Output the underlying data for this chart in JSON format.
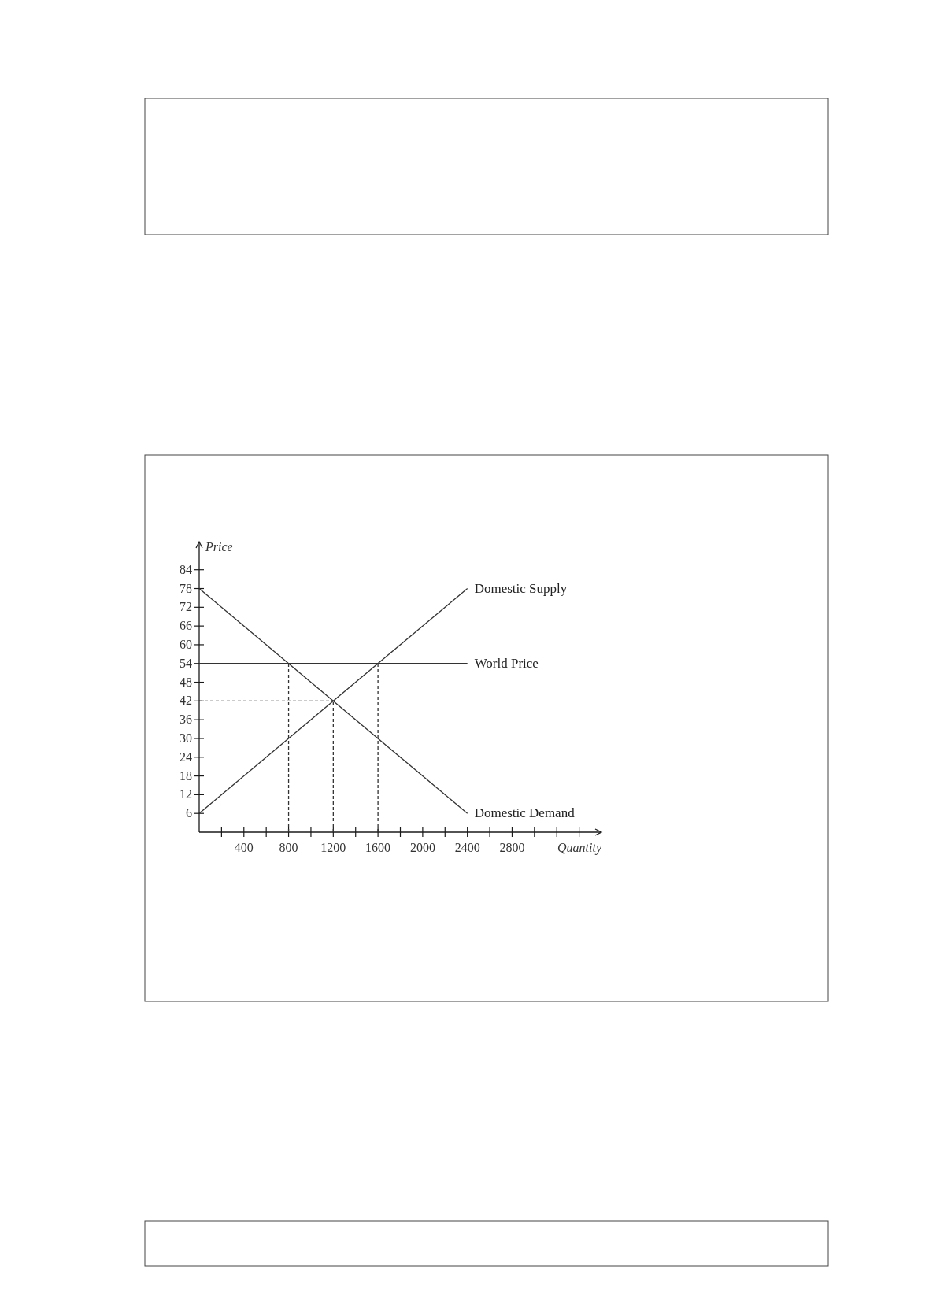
{
  "chart_data": {
    "type": "line",
    "xlabel": "Quantity",
    "ylabel": "Price",
    "xlim": [
      0,
      3600
    ],
    "ylim": [
      0,
      93
    ],
    "xticks": [
      {
        "value": 200,
        "label": null
      },
      400,
      {
        "value": 600,
        "label": null
      },
      800,
      {
        "value": 1000,
        "label": null
      },
      1200,
      {
        "value": 1400,
        "label": null
      },
      1600,
      {
        "value": 1800,
        "label": null
      },
      2000,
      {
        "value": 2200,
        "label": null
      },
      2400,
      {
        "value": 2600,
        "label": null
      },
      2800,
      {
        "value": 3000,
        "label": null
      },
      {
        "value": 3200,
        "label": null
      },
      {
        "value": 3400,
        "label": null
      }
    ],
    "yticks": [
      6,
      12,
      18,
      24,
      30,
      36,
      42,
      48,
      54,
      60,
      66,
      72,
      78,
      84
    ],
    "grid": false,
    "series": [
      {
        "name": "Domestic Supply",
        "color": "#333333",
        "x": [
          0,
          2400
        ],
        "values": [
          6,
          78
        ]
      },
      {
        "name": "World Price",
        "color": "#333333",
        "x": [
          0,
          2400
        ],
        "values": [
          54,
          54
        ]
      },
      {
        "name": "Domestic Demand",
        "color": "#333333",
        "x": [
          0,
          2400
        ],
        "values": [
          78,
          6
        ]
      },
      {
        "color": "#333333",
        "line_style": "dashed",
        "x": [
          800,
          800
        ],
        "values": [
          0,
          54
        ]
      },
      {
        "color": "#333333",
        "line_style": "dashed",
        "x": [
          1200,
          1200
        ],
        "values": [
          0,
          42
        ]
      },
      {
        "color": "#333333",
        "line_style": "dashed",
        "x": [
          1600,
          1600
        ],
        "values": [
          0,
          54
        ]
      },
      {
        "color": "#333333",
        "line_style": "dashed",
        "x": [
          0,
          1200
        ],
        "values": [
          42,
          42
        ]
      }
    ]
  }
}
